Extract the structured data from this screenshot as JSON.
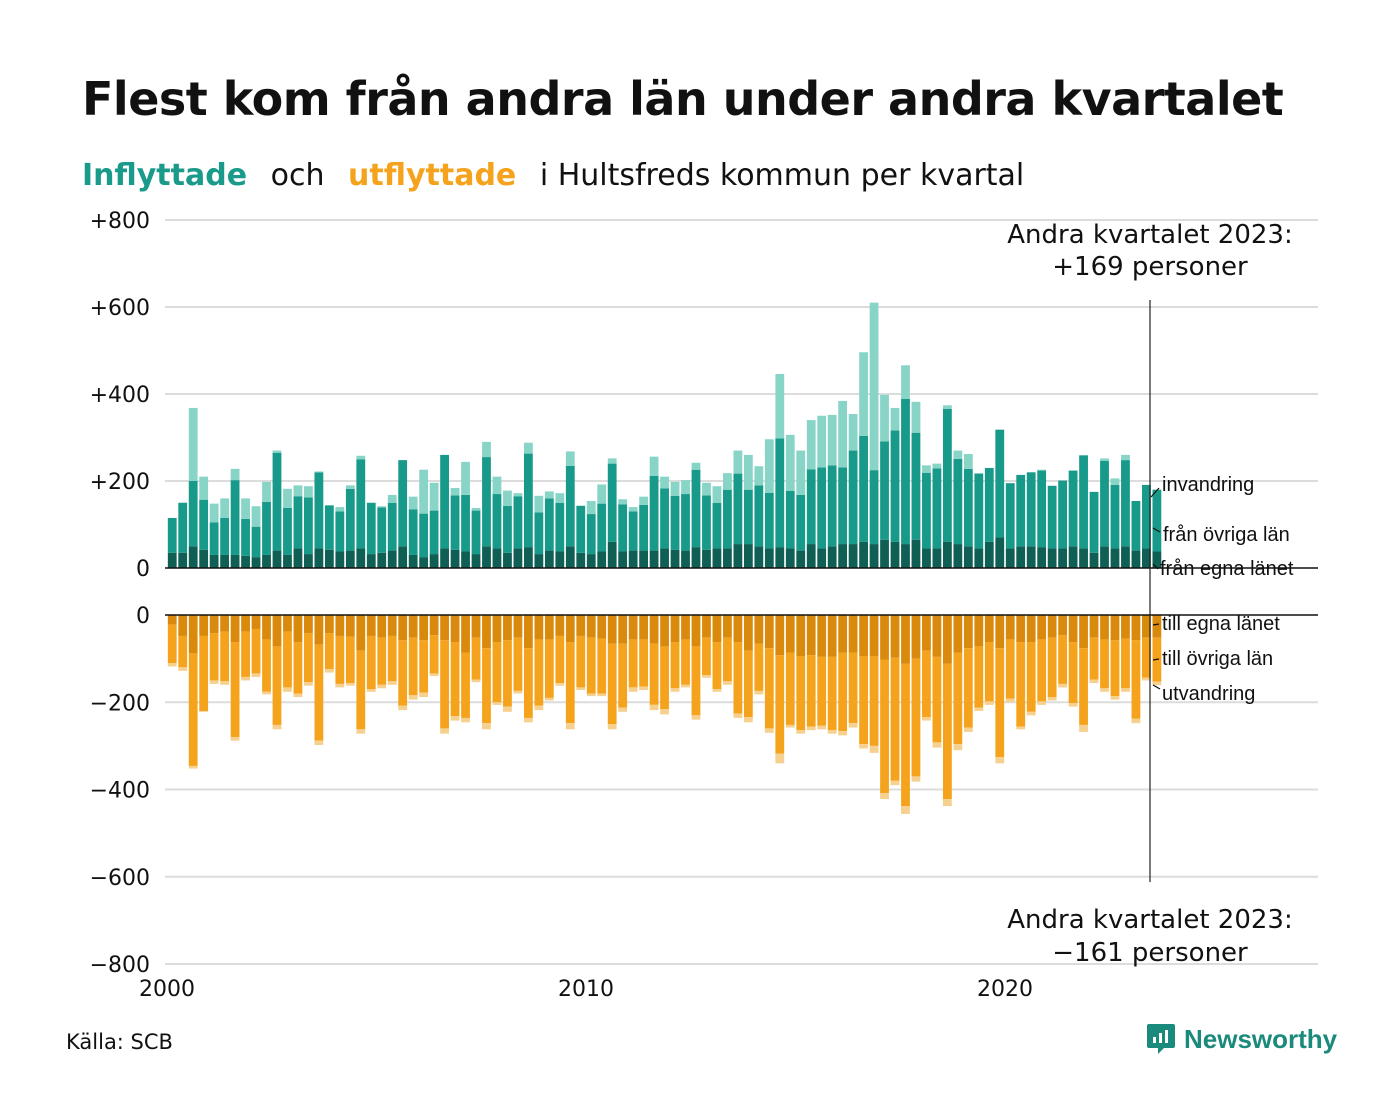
{
  "title": "Flest kom från andra län under andra kvartalet",
  "subtitle": {
    "part1": "Inflyttade",
    "part2": "och",
    "part3": "utflyttade",
    "part4": "i Hultsfreds kommun per kvartal"
  },
  "source": "Källa: SCB",
  "logo": {
    "text": "Newsworthy",
    "icon": "newsworthy-logo-icon"
  },
  "colors": {
    "in_local": "#0f5f55",
    "in_other": "#179a89",
    "in_immigration": "#88d5c8",
    "out_local": "#d98a0c",
    "out_other": "#f5a31d",
    "out_emigration": "#f6d08f",
    "gridline": "#dcdcdc"
  },
  "annotations": {
    "top_line1": "Andra kvartalet 2023:",
    "top_line2": "+169 personer",
    "bottom_line1": "Andra kvartalet 2023:",
    "bottom_line2": "−161 personer"
  },
  "chart_data": {
    "type": "bar",
    "stacked": true,
    "x_start": "2000 Q1",
    "x_end": "2023 Q2",
    "x_ticks": [
      "2000",
      "2010",
      "2020"
    ],
    "top_panel": {
      "y_ticks": [
        "+800",
        "+600",
        "+400",
        "+200",
        "0"
      ],
      "ylim": [
        0,
        800
      ],
      "series_labels": {
        "immigration": "invandring",
        "other": "från övriga län",
        "local": "från egna länet"
      },
      "totals": [
        110,
        140,
        368,
        210,
        148,
        160,
        228,
        160,
        142,
        198,
        270,
        182,
        190,
        188,
        222,
        142,
        140,
        190,
        258,
        150,
        142,
        168,
        218,
        164,
        226,
        196,
        240,
        184,
        244,
        138,
        290,
        210,
        178,
        172,
        288,
        166,
        176,
        172,
        268,
        142,
        154,
        192,
        252,
        158,
        140,
        164,
        256,
        210,
        198,
        202,
        242,
        196,
        188,
        218,
        270,
        260,
        234,
        296,
        446,
        306,
        270,
        340,
        350,
        352,
        384,
        354,
        496,
        610,
        398,
        368,
        466,
        382,
        236,
        240,
        374,
        270,
        262,
        218,
        182,
        282,
        178,
        206,
        218,
        226,
        174,
        188,
        224,
        250,
        160,
        252,
        206,
        260,
        134,
        169,
        169
      ],
      "local": [
        35,
        35,
        50,
        42,
        30,
        30,
        30,
        28,
        25,
        30,
        40,
        30,
        45,
        32,
        45,
        42,
        38,
        40,
        45,
        32,
        35,
        40,
        50,
        30,
        25,
        32,
        45,
        42,
        38,
        32,
        50,
        45,
        35,
        45,
        48,
        32,
        40,
        38,
        50,
        35,
        32,
        38,
        60,
        38,
        40,
        40,
        40,
        45,
        42,
        40,
        48,
        42,
        45,
        45,
        55,
        55,
        50,
        45,
        48,
        45,
        40,
        55,
        45,
        50,
        55,
        55,
        60,
        55,
        65,
        60,
        55,
        65,
        45,
        45,
        60,
        55,
        50,
        45,
        60,
        70,
        45,
        50,
        50,
        48,
        45,
        45,
        50,
        45,
        35,
        50,
        45,
        50,
        40,
        45,
        38
      ],
      "other": [
        80,
        115,
        150,
        115,
        75,
        85,
        172,
        85,
        70,
        122,
        225,
        108,
        120,
        130,
        175,
        102,
        92,
        142,
        205,
        118,
        104,
        110,
        198,
        105,
        100,
        100,
        215,
        125,
        130,
        100,
        205,
        125,
        108,
        120,
        215,
        96,
        120,
        112,
        185,
        108,
        92,
        110,
        180,
        108,
        90,
        105,
        172,
        138,
        124,
        130,
        178,
        125,
        105,
        135,
        162,
        125,
        140,
        128,
        250,
        132,
        128,
        172,
        186,
        186,
        176,
        215,
        244,
        170,
        226,
        256,
        334,
        246,
        174,
        184,
        306,
        196,
        178,
        172,
        170,
        248,
        150,
        164,
        170,
        176,
        144,
        156,
        174,
        214,
        140,
        196,
        146,
        198,
        114,
        146,
        142
      ]
    },
    "bottom_panel": {
      "y_ticks": [
        "0",
        "−200",
        "−400",
        "−600",
        "−800"
      ],
      "ylim": [
        -800,
        0
      ],
      "series_labels": {
        "local": "till egna länet",
        "other": "till övriga län",
        "emigration": "utvandring"
      },
      "totals": [
        -118,
        -128,
        -352,
        -222,
        -158,
        -160,
        -288,
        -150,
        -142,
        -182,
        -262,
        -176,
        -188,
        -162,
        -298,
        -132,
        -166,
        -162,
        -272,
        -176,
        -168,
        -160,
        -218,
        -194,
        -188,
        -140,
        -272,
        -242,
        -246,
        -154,
        -262,
        -206,
        -222,
        -180,
        -246,
        -218,
        -196,
        -162,
        -262,
        -172,
        -186,
        -186,
        -262,
        -222,
        -176,
        -172,
        -218,
        -228,
        -176,
        -166,
        -240,
        -144,
        -176,
        -160,
        -236,
        -246,
        -182,
        -270,
        -340,
        -258,
        -272,
        -264,
        -262,
        -272,
        -276,
        -258,
        -306,
        -316,
        -422,
        -390,
        -456,
        -382,
        -242,
        -304,
        -438,
        -310,
        -268,
        -220,
        -206,
        -340,
        -200,
        -262,
        -230,
        -206,
        -196,
        -166,
        -210,
        -268,
        -156,
        -176,
        -194,
        -176,
        -248,
        -150,
        -161
      ],
      "local": [
        -22,
        -48,
        -88,
        -48,
        -42,
        -38,
        -62,
        -38,
        -32,
        -56,
        -72,
        -38,
        -62,
        -42,
        -68,
        -42,
        -48,
        -50,
        -82,
        -48,
        -52,
        -48,
        -58,
        -52,
        -58,
        -46,
        -58,
        -62,
        -86,
        -52,
        -76,
        -62,
        -58,
        -52,
        -76,
        -56,
        -56,
        -48,
        -62,
        -48,
        -52,
        -54,
        -66,
        -66,
        -56,
        -56,
        -66,
        -72,
        -62,
        -56,
        -72,
        -52,
        -62,
        -52,
        -62,
        -82,
        -66,
        -76,
        -92,
        -86,
        -94,
        -92,
        -96,
        -96,
        -86,
        -86,
        -94,
        -94,
        -102,
        -98,
        -112,
        -100,
        -82,
        -96,
        -112,
        -86,
        -76,
        -72,
        -62,
        -76,
        -56,
        -62,
        -62,
        -56,
        -52,
        -46,
        -62,
        -76,
        -52,
        -56,
        -58,
        -54,
        -58,
        -52,
        -52
      ],
      "other": [
        -88,
        -72,
        -258,
        -172,
        -108,
        -114,
        -218,
        -104,
        -102,
        -120,
        -180,
        -128,
        -118,
        -112,
        -220,
        -82,
        -110,
        -106,
        -180,
        -122,
        -108,
        -104,
        -150,
        -132,
        -120,
        -88,
        -202,
        -170,
        -150,
        -96,
        -172,
        -138,
        -152,
        -122,
        -160,
        -152,
        -134,
        -108,
        -186,
        -118,
        -128,
        -126,
        -184,
        -146,
        -110,
        -108,
        -140,
        -144,
        -106,
        -104,
        -158,
        -86,
        -108,
        -100,
        -164,
        -152,
        -108,
        -184,
        -226,
        -166,
        -170,
        -164,
        -158,
        -168,
        -180,
        -162,
        -202,
        -206,
        -306,
        -282,
        -326,
        -270,
        -152,
        -196,
        -310,
        -210,
        -182,
        -140,
        -136,
        -250,
        -136,
        -194,
        -160,
        -142,
        -136,
        -112,
        -140,
        -176,
        -96,
        -112,
        -128,
        -114,
        -180,
        -92,
        -101
      ]
    }
  }
}
